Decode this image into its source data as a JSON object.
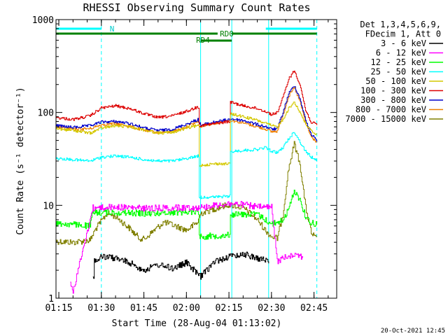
{
  "chart_data": {
    "type": "line",
    "title": "RHESSI Observing Summary Count Rates",
    "xlabel": "Start Time (28-Aug-04 01:13:02)",
    "ylabel": "Count Rate (s⁻¹ detector⁻¹)",
    "yscale": "log",
    "ylim": [
      1,
      1000
    ],
    "xlim": [
      74,
      173
    ],
    "yticks": [
      {
        "v": 1,
        "label": "1"
      },
      {
        "v": 10,
        "label": "10"
      },
      {
        "v": 100,
        "label": "100"
      },
      {
        "v": 1000,
        "label": "1000"
      }
    ],
    "xticks": [
      {
        "v": 75,
        "label": "01:15"
      },
      {
        "v": 90,
        "label": "01:30"
      },
      {
        "v": 105,
        "label": "01:45"
      },
      {
        "v": 120,
        "label": "02:00"
      },
      {
        "v": 135,
        "label": "02:15"
      },
      {
        "v": 150,
        "label": "02:30"
      },
      {
        "v": 165,
        "label": "02:45"
      }
    ],
    "legend_header": [
      "Det 1,3,4,5,6,9,",
      "FDecim 1, Att 0"
    ],
    "series": [
      {
        "name": "3 - 6 keV",
        "color": "#000000",
        "points": [
          [
            87,
            1.7
          ],
          [
            88,
            2.5
          ],
          [
            90,
            2.8
          ],
          [
            95,
            2.7
          ],
          [
            100,
            2.4
          ],
          [
            105,
            2.0
          ],
          [
            110,
            2.3
          ],
          [
            115,
            2.1
          ],
          [
            120,
            2.4
          ],
          [
            125,
            1.7
          ],
          [
            130,
            2.5
          ],
          [
            135,
            2.8
          ],
          [
            140,
            3.0
          ],
          [
            145,
            2.7
          ],
          [
            149,
            2.5
          ]
        ]
      },
      {
        "name": "6 - 12 keV",
        "color": "#ff00ff",
        "points": [
          [
            79,
            1.4
          ],
          [
            80,
            1.2
          ],
          [
            87,
            9.4
          ],
          [
            95,
            9.6
          ],
          [
            105,
            9.3
          ],
          [
            115,
            9.4
          ],
          [
            124,
            9.5
          ],
          [
            125,
            9.5
          ],
          [
            130,
            10.0
          ],
          [
            135,
            10.4
          ],
          [
            140,
            10.2
          ],
          [
            145,
            9.6
          ],
          [
            150,
            9.5
          ],
          [
            152,
            2.5
          ],
          [
            155,
            2.8
          ],
          [
            158,
            3.0
          ],
          [
            161,
            2.8
          ]
        ]
      },
      {
        "name": "12 - 25 keV",
        "color": "#00ff00",
        "points": [
          [
            74,
            6.4
          ],
          [
            80,
            6.2
          ],
          [
            86,
            6.0
          ],
          [
            87,
            8.4
          ],
          [
            95,
            8.4
          ],
          [
            105,
            8.2
          ],
          [
            115,
            8.4
          ],
          [
            124,
            8.6
          ],
          [
            125,
            4.6
          ],
          [
            135,
            4.8
          ],
          [
            136,
            8.0
          ],
          [
            145,
            8.0
          ],
          [
            150,
            6.3
          ],
          [
            152,
            6.5
          ],
          [
            154,
            7.0
          ],
          [
            156,
            9.0
          ],
          [
            158,
            14.5
          ],
          [
            160,
            11.5
          ],
          [
            162,
            7.5
          ],
          [
            164,
            6.5
          ],
          [
            166,
            6.3
          ]
        ]
      },
      {
        "name": "25 - 50 keV",
        "color": "#00ffff",
        "points": [
          [
            74,
            32
          ],
          [
            80,
            31
          ],
          [
            86,
            30
          ],
          [
            90,
            33
          ],
          [
            95,
            34
          ],
          [
            100,
            33
          ],
          [
            105,
            31
          ],
          [
            110,
            30
          ],
          [
            115,
            30
          ],
          [
            120,
            32
          ],
          [
            124,
            34
          ],
          [
            125,
            12.2
          ],
          [
            130,
            12.3
          ],
          [
            135,
            12.5
          ],
          [
            136,
            38
          ],
          [
            140,
            39
          ],
          [
            145,
            40
          ],
          [
            148,
            42
          ],
          [
            150,
            38
          ],
          [
            152,
            37
          ],
          [
            154,
            42
          ],
          [
            156,
            52
          ],
          [
            158,
            62
          ],
          [
            160,
            48
          ],
          [
            162,
            38
          ],
          [
            164,
            33
          ],
          [
            166,
            31
          ]
        ]
      },
      {
        "name": "50 - 100 keV",
        "color": "#d4c800",
        "points": [
          [
            74,
            67
          ],
          [
            80,
            64
          ],
          [
            86,
            60
          ],
          [
            90,
            68
          ],
          [
            95,
            72
          ],
          [
            100,
            70
          ],
          [
            105,
            65
          ],
          [
            110,
            60
          ],
          [
            115,
            61
          ],
          [
            120,
            68
          ],
          [
            124,
            72
          ],
          [
            125,
            27
          ],
          [
            130,
            28
          ],
          [
            135,
            28
          ],
          [
            136,
            96
          ],
          [
            140,
            90
          ],
          [
            145,
            82
          ],
          [
            148,
            76
          ],
          [
            150,
            72
          ],
          [
            152,
            70
          ],
          [
            154,
            85
          ],
          [
            156,
            110
          ],
          [
            158,
            130
          ],
          [
            160,
            100
          ],
          [
            162,
            75
          ],
          [
            164,
            63
          ],
          [
            166,
            58
          ]
        ]
      },
      {
        "name": "100 - 300 keV",
        "color": "#dd0000",
        "points": [
          [
            74,
            88
          ],
          [
            80,
            84
          ],
          [
            86,
            92
          ],
          [
            90,
            112
          ],
          [
            95,
            118
          ],
          [
            100,
            110
          ],
          [
            105,
            97
          ],
          [
            110,
            88
          ],
          [
            115,
            92
          ],
          [
            120,
            103
          ],
          [
            124,
            115
          ],
          [
            125,
            72
          ],
          [
            130,
            76
          ],
          [
            135,
            80
          ],
          [
            136,
            128
          ],
          [
            140,
            118
          ],
          [
            145,
            110
          ],
          [
            148,
            102
          ],
          [
            150,
            95
          ],
          [
            152,
            100
          ],
          [
            154,
            145
          ],
          [
            156,
            230
          ],
          [
            158,
            282
          ],
          [
            160,
            200
          ],
          [
            162,
            105
          ],
          [
            164,
            78
          ],
          [
            166,
            74
          ]
        ]
      },
      {
        "name": "300 - 800 keV",
        "color": "#0000cc",
        "points": [
          [
            74,
            72
          ],
          [
            80,
            69
          ],
          [
            86,
            72
          ],
          [
            90,
            79
          ],
          [
            95,
            80
          ],
          [
            100,
            76
          ],
          [
            105,
            68
          ],
          [
            110,
            64
          ],
          [
            115,
            66
          ],
          [
            120,
            75
          ],
          [
            124,
            84
          ],
          [
            125,
            73
          ],
          [
            130,
            79
          ],
          [
            135,
            84
          ],
          [
            136,
            85
          ],
          [
            140,
            82
          ],
          [
            145,
            74
          ],
          [
            148,
            70
          ],
          [
            150,
            66
          ],
          [
            152,
            67
          ],
          [
            154,
            100
          ],
          [
            156,
            160
          ],
          [
            158,
            195
          ],
          [
            160,
            140
          ],
          [
            162,
            82
          ],
          [
            164,
            58
          ],
          [
            166,
            50
          ]
        ]
      },
      {
        "name": "800 - 7000 keV",
        "color": "#ee8000",
        "points": [
          [
            74,
            69
          ],
          [
            80,
            66
          ],
          [
            86,
            67
          ],
          [
            90,
            74
          ],
          [
            95,
            76
          ],
          [
            100,
            71
          ],
          [
            105,
            64
          ],
          [
            110,
            61
          ],
          [
            115,
            62
          ],
          [
            120,
            70
          ],
          [
            124,
            80
          ],
          [
            125,
            71
          ],
          [
            130,
            77
          ],
          [
            135,
            82
          ],
          [
            136,
            82
          ],
          [
            140,
            77
          ],
          [
            145,
            70
          ],
          [
            148,
            66
          ],
          [
            150,
            62
          ],
          [
            152,
            63
          ],
          [
            154,
            96
          ],
          [
            156,
            150
          ],
          [
            158,
            185
          ],
          [
            160,
            130
          ],
          [
            162,
            76
          ],
          [
            164,
            54
          ],
          [
            166,
            48
          ]
        ]
      },
      {
        "name": "7000 - 15000 keV",
        "color": "#808000",
        "points": [
          [
            74,
            4.1
          ],
          [
            80,
            4.0
          ],
          [
            86,
            4.2
          ],
          [
            88,
            5.6
          ],
          [
            92,
            8.2
          ],
          [
            95,
            7.6
          ],
          [
            100,
            5.6
          ],
          [
            103,
            4.5
          ],
          [
            105,
            4.3
          ],
          [
            108,
            5.2
          ],
          [
            112,
            6.6
          ],
          [
            116,
            6.0
          ],
          [
            120,
            5.4
          ],
          [
            124,
            6.6
          ],
          [
            125,
            8.2
          ],
          [
            130,
            9.2
          ],
          [
            135,
            10.2
          ],
          [
            140,
            9.4
          ],
          [
            145,
            7.0
          ],
          [
            148,
            5.3
          ],
          [
            150,
            4.6
          ],
          [
            152,
            4.4
          ],
          [
            154,
            8.0
          ],
          [
            156,
            25
          ],
          [
            158,
            46
          ],
          [
            160,
            28
          ],
          [
            162,
            9.5
          ],
          [
            164,
            5.0
          ],
          [
            166,
            4.3
          ]
        ]
      }
    ],
    "state_bars": [
      {
        "label": "N",
        "color": "#00ffff",
        "segments": [
          [
            74,
            90
          ],
          [
            148,
            166
          ]
        ]
      },
      {
        "label": "RD0",
        "color": "#008000",
        "segments": [
          [
            74,
            131
          ],
          [
            136,
            166
          ]
        ]
      },
      {
        "label": "RD4",
        "color": "#008000",
        "segments": [
          [
            125,
            136
          ]
        ]
      }
    ],
    "vlines_solid": [
      74,
      125,
      136,
      149
    ],
    "vlines_dashed": [
      90,
      166
    ]
  },
  "footer": {
    "timestamp": "20-Oct-2021 12:45"
  }
}
